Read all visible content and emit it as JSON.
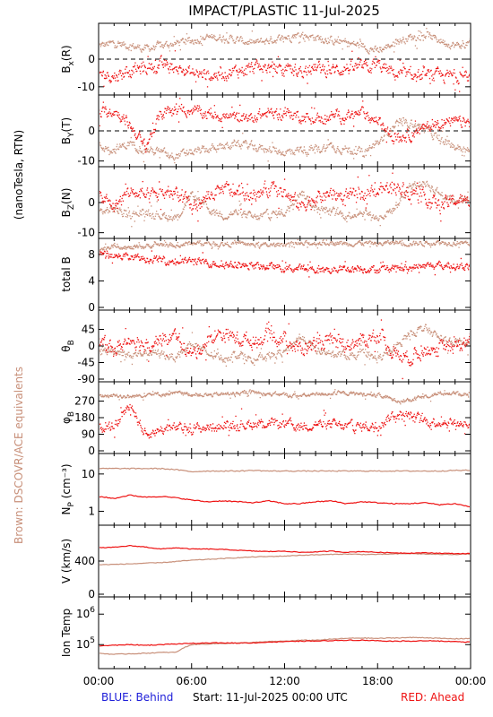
{
  "header": {
    "title": "IMPACT/PLASTIC   11-Jul-2025"
  },
  "left_labels": {
    "units": "(nanoTesla, RTN)",
    "brown_note": "Brown: DSCOVR/ACE equivalents"
  },
  "footer": {
    "blue_note": "BLUE: Behind",
    "start_note": "Start: 11-Jul-2025 00:00 UTC",
    "red_note": "RED: Ahead"
  },
  "colors": {
    "ahead": "#ee1111",
    "dscovr": "#c8907a",
    "behind": "#1b1bd8",
    "brown_text": "#c8907a"
  },
  "chart_data": [
    {
      "type": "scatter",
      "id": "bx",
      "ylabel": "Bx(R)",
      "ylim": [
        -12,
        12
      ],
      "yticks": [
        -10,
        0
      ],
      "dashed_zero": true,
      "x_hours": [
        0,
        1,
        2,
        3,
        4,
        5,
        6,
        7,
        8,
        9,
        10,
        11,
        12,
        13,
        14,
        15,
        16,
        17,
        18,
        19,
        20,
        21,
        22,
        23,
        24
      ],
      "series": [
        {
          "name": "Ahead",
          "values": [
            -5,
            -6,
            -4,
            -3,
            -2,
            -3,
            -5,
            -6,
            -5,
            -4,
            -3,
            -3,
            -4,
            -4,
            -3,
            -4,
            -3,
            -3,
            -2,
            -5,
            -6,
            -6,
            -6,
            -6,
            -6
          ],
          "spread": 2.5
        },
        {
          "name": "DSCOVR/ACE",
          "values": [
            5,
            6,
            5,
            4,
            5,
            6,
            7,
            8,
            8,
            7,
            6,
            7,
            8,
            9,
            8,
            7,
            6,
            5,
            3,
            6,
            8,
            9,
            7,
            5,
            6
          ],
          "spread": 1.5
        }
      ]
    },
    {
      "type": "scatter",
      "id": "by",
      "ylabel": "By(T)",
      "ylim": [
        -11,
        11
      ],
      "yticks": [
        -10,
        0
      ],
      "dashed_zero": true,
      "x_hours": [
        0,
        1,
        2,
        3,
        4,
        5,
        6,
        7,
        8,
        9,
        10,
        11,
        12,
        13,
        14,
        15,
        16,
        17,
        18,
        19,
        20,
        21,
        22,
        23,
        24
      ],
      "series": [
        {
          "name": "Ahead",
          "values": [
            6,
            7,
            2,
            -5,
            6,
            7,
            7,
            6,
            5,
            4,
            5,
            6,
            6,
            5,
            4,
            5,
            5,
            6,
            3,
            -2,
            -1,
            1,
            3,
            3,
            3
          ],
          "spread": 2.0
        },
        {
          "name": "DSCOVR/ACE",
          "values": [
            -5,
            -6,
            -4,
            -6,
            -7,
            -8,
            -7,
            -6,
            -5,
            -4,
            -5,
            -6,
            -7,
            -6,
            -6,
            -5,
            -6,
            -7,
            -4,
            2,
            3,
            1,
            -3,
            -5,
            -7
          ],
          "spread": 1.5
        }
      ]
    },
    {
      "type": "scatter",
      "id": "bz",
      "ylabel": "Bz(N)",
      "ylim": [
        -11,
        11
      ],
      "yticks": [
        -10,
        0
      ],
      "dashed_zero": false,
      "x_hours": [
        0,
        1,
        2,
        3,
        4,
        5,
        6,
        7,
        8,
        9,
        10,
        11,
        12,
        13,
        14,
        15,
        16,
        17,
        18,
        19,
        20,
        21,
        22,
        23,
        24
      ],
      "series": [
        {
          "name": "Ahead",
          "values": [
            2,
            -1,
            4,
            2,
            3,
            4,
            -2,
            2,
            5,
            3,
            2,
            5,
            3,
            -1,
            2,
            3,
            2,
            3,
            4,
            6,
            4,
            2,
            -1,
            1,
            0
          ],
          "spread": 2.5
        },
        {
          "name": "DSCOVR/ACE",
          "values": [
            -3,
            -2,
            -4,
            -3,
            -4,
            -5,
            3,
            -2,
            -4,
            -3,
            -5,
            -4,
            -3,
            4,
            -2,
            -3,
            -4,
            -3,
            -5,
            -2,
            5,
            7,
            3,
            1,
            2
          ],
          "spread": 1.5
        }
      ]
    },
    {
      "type": "scatter",
      "id": "btot",
      "ylabel": "total B",
      "ylim": [
        0,
        10
      ],
      "yticks": [
        0,
        4,
        8
      ],
      "dashed_zero": false,
      "x_hours": [
        0,
        1,
        2,
        3,
        4,
        5,
        6,
        7,
        8,
        9,
        10,
        11,
        12,
        13,
        14,
        15,
        16,
        17,
        18,
        19,
        20,
        21,
        22,
        23,
        24
      ],
      "series": [
        {
          "name": "Ahead",
          "values": [
            8.2,
            8.0,
            7.6,
            7.4,
            7.2,
            7.0,
            7.1,
            6.8,
            6.6,
            6.4,
            6.3,
            6.2,
            6.0,
            5.9,
            5.8,
            5.8,
            5.9,
            5.9,
            5.8,
            5.9,
            6.0,
            6.3,
            6.4,
            6.3,
            6.2
          ],
          "spread": 0.6
        },
        {
          "name": "DSCOVR/ACE",
          "values": [
            8.8,
            9.5,
            9.0,
            9.3,
            9.6,
            9.4,
            9.8,
            9.7,
            9.6,
            9.8,
            9.5,
            9.4,
            9.7,
            9.6,
            9.8,
            9.9,
            9.7,
            9.8,
            9.6,
            9.9,
            9.7,
            9.8,
            9.9,
            9.8,
            9.8
          ],
          "spread": 0.4
        }
      ]
    },
    {
      "type": "scatter",
      "id": "theta",
      "ylabel": "θB",
      "ylim": [
        -90,
        90
      ],
      "yticks": [
        -90,
        -45,
        0,
        45
      ],
      "dashed_zero": false,
      "x_hours": [
        0,
        1,
        2,
        3,
        4,
        5,
        6,
        7,
        8,
        9,
        10,
        11,
        12,
        13,
        14,
        15,
        16,
        17,
        18,
        19,
        20,
        21,
        22,
        23,
        24
      ],
      "series": [
        {
          "name": "Ahead",
          "values": [
            10,
            -10,
            25,
            5,
            20,
            25,
            -25,
            15,
            35,
            20,
            15,
            30,
            20,
            -10,
            10,
            15,
            5,
            15,
            35,
            -20,
            -30,
            -10,
            -5,
            0,
            10
          ],
          "spread": 22
        },
        {
          "name": "DSCOVR/ACE",
          "values": [
            -15,
            -10,
            -25,
            -15,
            -20,
            -30,
            10,
            -20,
            -30,
            -20,
            -35,
            -25,
            -15,
            30,
            -10,
            -20,
            -25,
            -20,
            -35,
            -10,
            35,
            50,
            20,
            10,
            15
          ],
          "spread": 12
        }
      ]
    },
    {
      "type": "scatter",
      "id": "phi",
      "ylabel": "φB",
      "ylim": [
        0,
        360
      ],
      "yticks": [
        0,
        90,
        180,
        270
      ],
      "dashed_zero": false,
      "x_hours": [
        0,
        1,
        2,
        3,
        4,
        5,
        6,
        7,
        8,
        9,
        10,
        11,
        12,
        13,
        14,
        15,
        16,
        17,
        18,
        19,
        20,
        21,
        22,
        23,
        24
      ],
      "series": [
        {
          "name": "Ahead",
          "values": [
            140,
            130,
            260,
            90,
            120,
            125,
            120,
            130,
            140,
            145,
            150,
            155,
            145,
            135,
            150,
            145,
            130,
            135,
            140,
            200,
            190,
            165,
            160,
            150,
            155
          ],
          "spread": 30
        },
        {
          "name": "DSCOVR/ACE",
          "values": [
            300,
            305,
            295,
            310,
            310,
            315,
            310,
            305,
            310,
            315,
            320,
            310,
            305,
            300,
            310,
            315,
            315,
            310,
            305,
            280,
            275,
            300,
            315,
            315,
            310
          ],
          "spread": 12
        }
      ]
    },
    {
      "type": "line",
      "id": "np",
      "ylabel": "Np (cm-3)",
      "ylim_log": [
        0.5,
        30
      ],
      "yticks": [
        1,
        10
      ],
      "log": true,
      "x_hours": [
        0,
        1,
        2,
        3,
        4,
        5,
        6,
        7,
        8,
        9,
        10,
        11,
        12,
        13,
        14,
        15,
        16,
        17,
        18,
        19,
        20,
        21,
        22,
        23,
        24
      ],
      "series": [
        {
          "name": "Ahead",
          "values": [
            2.5,
            2.2,
            2.7,
            2.4,
            2.5,
            2.3,
            2.0,
            1.8,
            1.9,
            1.8,
            1.7,
            1.9,
            1.6,
            1.6,
            1.8,
            1.9,
            1.6,
            1.8,
            1.7,
            1.6,
            1.6,
            1.7,
            1.5,
            1.6,
            1.3
          ]
        },
        {
          "name": "DSCOVR/ACE",
          "values": [
            14,
            14,
            14,
            14,
            14,
            13,
            11.5,
            12,
            12,
            12,
            12.5,
            12,
            12,
            12,
            12,
            12,
            12,
            12,
            12,
            12,
            12,
            12,
            12,
            12.5,
            12.5
          ]
        }
      ]
    },
    {
      "type": "line",
      "id": "v",
      "ylabel": "V (km/s)",
      "ylim": [
        0,
        800
      ],
      "yticks": [
        0,
        400
      ],
      "x_hours": [
        0,
        1,
        2,
        3,
        4,
        5,
        6,
        7,
        8,
        9,
        10,
        11,
        12,
        13,
        14,
        15,
        16,
        17,
        18,
        19,
        20,
        21,
        22,
        23,
        24
      ],
      "series": [
        {
          "name": "Ahead",
          "values": [
            560,
            565,
            585,
            570,
            545,
            560,
            545,
            545,
            540,
            530,
            520,
            515,
            520,
            505,
            510,
            520,
            505,
            515,
            505,
            500,
            495,
            500,
            495,
            490,
            490
          ]
        },
        {
          "name": "DSCOVR/ACE",
          "values": [
            355,
            360,
            365,
            375,
            380,
            395,
            410,
            420,
            430,
            440,
            450,
            455,
            460,
            470,
            475,
            480,
            485,
            480,
            480,
            485,
            490,
            485,
            480,
            480,
            485
          ]
        }
      ]
    },
    {
      "type": "line",
      "id": "temp",
      "ylabel": "Ion Temp",
      "log": true,
      "ylim_log": [
        20000,
        3000000
      ],
      "yticks": [
        "10^5",
        "10^6"
      ],
      "x_hours": [
        0,
        1,
        2,
        3,
        4,
        5,
        6,
        7,
        8,
        9,
        10,
        11,
        12,
        13,
        14,
        15,
        16,
        17,
        18,
        19,
        20,
        21,
        22,
        23,
        24
      ],
      "series": [
        {
          "name": "Ahead",
          "values": [
            90000,
            95000,
            100000,
            95000,
            100000,
            105000,
            110000,
            112000,
            115000,
            112000,
            115000,
            120000,
            125000,
            130000,
            130000,
            135000,
            140000,
            140000,
            135000,
            130000,
            130000,
            135000,
            130000,
            125000,
            120000
          ]
        },
        {
          "name": "DSCOVR/ACE",
          "values": [
            52000,
            48000,
            50000,
            52000,
            55000,
            56000,
            100000,
            105000,
            110000,
            112000,
            118000,
            125000,
            130000,
            138000,
            140000,
            150000,
            160000,
            165000,
            160000,
            165000,
            170000,
            170000,
            160000,
            155000,
            160000
          ]
        }
      ]
    }
  ],
  "axis": {
    "tick_labels": [
      "00:00",
      "06:00",
      "12:00",
      "18:00",
      "00:00"
    ],
    "panel_labels": {
      "bx": {
        "main": "B",
        "sub": "x",
        "suffix": "(R)"
      },
      "by": {
        "main": "B",
        "sub": "Y",
        "suffix": "(T)"
      },
      "bz": {
        "main": "B",
        "sub": "Z",
        "suffix": "(N)"
      },
      "btot": {
        "main": "total B",
        "sub": "",
        "suffix": ""
      },
      "theta": {
        "main": "θ",
        "sub": "B",
        "suffix": ""
      },
      "phi": {
        "main": "φ",
        "sub": "B",
        "suffix": ""
      },
      "np": {
        "main": "N",
        "sub": "P",
        "suffix": " (cm⁻³)"
      },
      "v": {
        "main": "V (km/s)",
        "sub": "",
        "suffix": ""
      },
      "temp": {
        "main": "Ion Temp",
        "sub": "",
        "suffix": ""
      }
    }
  }
}
